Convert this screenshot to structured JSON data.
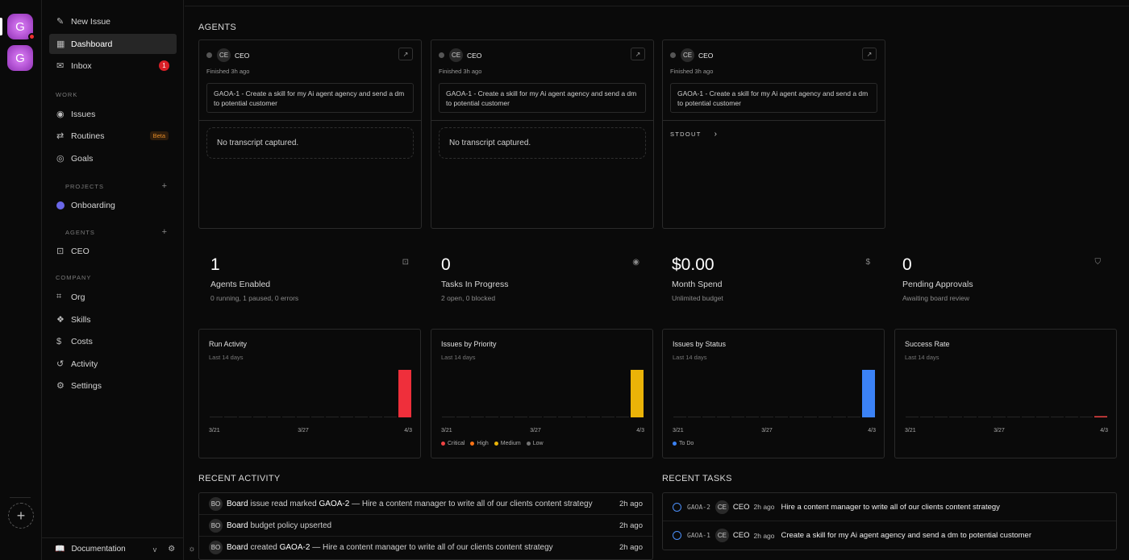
{
  "companies": [
    {
      "initial": "G",
      "has_alert": true
    },
    {
      "initial": "G",
      "has_alert": false
    }
  ],
  "sidebar": {
    "new_issue": "New Issue",
    "dashboard": "Dashboard",
    "inbox": "Inbox",
    "inbox_count": "1",
    "work_label": "WORK",
    "issues": "Issues",
    "routines": "Routines",
    "beta": "Beta",
    "goals": "Goals",
    "projects_label": "PROJECTS",
    "project": "Onboarding",
    "agents_label": "AGENTS",
    "agent": "CEO",
    "company_label": "COMPANY",
    "org": "Org",
    "skills": "Skills",
    "costs": "Costs",
    "activity": "Activity",
    "settings": "Settings",
    "documentation": "Documentation",
    "version": "v"
  },
  "agents_title": "AGENTS",
  "agent_cards": [
    {
      "avatar": "CE",
      "name": "CEO",
      "finished": "Finished 3h ago",
      "task": "GAOA-1 - Create a skill for my Ai agent agency and send a dm to potential customer",
      "body": "No transcript captured."
    },
    {
      "avatar": "CE",
      "name": "CEO",
      "finished": "Finished 3h ago",
      "task": "GAOA-1 - Create a skill for my Ai agent agency and send a dm to potential customer",
      "body": "No transcript captured."
    },
    {
      "avatar": "CE",
      "name": "CEO",
      "finished": "Finished 3h ago",
      "task": "GAOA-1 - Create a skill for my Ai agent agency and send a dm to potential customer",
      "stdout": "STDOUT"
    }
  ],
  "metrics": [
    {
      "value": "1",
      "label": "Agents Enabled",
      "sub": "0 running, 1 paused, 0 errors",
      "icon": "bot-icon"
    },
    {
      "value": "0",
      "label": "Tasks In Progress",
      "sub": "2 open, 0 blocked",
      "icon": "circle-dot-icon"
    },
    {
      "value": "$0.00",
      "label": "Month Spend",
      "sub": "Unlimited budget",
      "icon": "dollar-icon"
    },
    {
      "value": "0",
      "label": "Pending Approvals",
      "sub": "Awaiting board review",
      "icon": "shield-icon"
    }
  ],
  "chart_data": [
    {
      "type": "bar",
      "title": "Run Activity",
      "subtitle": "Last 14 days",
      "x": [
        "3/21",
        "3/22",
        "3/23",
        "3/24",
        "3/25",
        "3/26",
        "3/27",
        "3/28",
        "3/29",
        "3/30",
        "3/31",
        "4/1",
        "4/2",
        "4/3"
      ],
      "x_tick_labels": [
        "3/21",
        "3/27",
        "4/3"
      ],
      "values": [
        0,
        0,
        0,
        0,
        0,
        0,
        0,
        0,
        0,
        0,
        0,
        0,
        0,
        1
      ],
      "color": "#ef2f3b"
    },
    {
      "type": "bar",
      "title": "Issues by Priority",
      "subtitle": "Last 14 days",
      "x": [
        "3/21",
        "3/22",
        "3/23",
        "3/24",
        "3/25",
        "3/26",
        "3/27",
        "3/28",
        "3/29",
        "3/30",
        "3/31",
        "4/1",
        "4/2",
        "4/3"
      ],
      "x_tick_labels": [
        "3/21",
        "3/27",
        "4/3"
      ],
      "values": [
        0,
        0,
        0,
        0,
        0,
        0,
        0,
        0,
        0,
        0,
        0,
        0,
        0,
        2
      ],
      "color": "#eab308",
      "legend": [
        {
          "name": "Critical",
          "color": "#ef4444"
        },
        {
          "name": "High",
          "color": "#f97316"
        },
        {
          "name": "Medium",
          "color": "#eab308"
        },
        {
          "name": "Low",
          "color": "#737373"
        }
      ]
    },
    {
      "type": "bar",
      "title": "Issues by Status",
      "subtitle": "Last 14 days",
      "x": [
        "3/21",
        "3/22",
        "3/23",
        "3/24",
        "3/25",
        "3/26",
        "3/27",
        "3/28",
        "3/29",
        "3/30",
        "3/31",
        "4/1",
        "4/2",
        "4/3"
      ],
      "x_tick_labels": [
        "3/21",
        "3/27",
        "4/3"
      ],
      "values": [
        0,
        0,
        0,
        0,
        0,
        0,
        0,
        0,
        0,
        0,
        0,
        0,
        0,
        2
      ],
      "color": "#3b82f6",
      "legend": [
        {
          "name": "To Do",
          "color": "#3b82f6"
        }
      ]
    },
    {
      "type": "bar",
      "title": "Success Rate",
      "subtitle": "Last 14 days",
      "x": [
        "3/21",
        "3/22",
        "3/23",
        "3/24",
        "3/25",
        "3/26",
        "3/27",
        "3/28",
        "3/29",
        "3/30",
        "3/31",
        "4/1",
        "4/2",
        "4/3"
      ],
      "x_tick_labels": [
        "3/21",
        "3/27",
        "4/3"
      ],
      "values": [
        0,
        0,
        0,
        0,
        0,
        0,
        0,
        0,
        0,
        0,
        0,
        0,
        0,
        0
      ],
      "color": "#ef4444"
    }
  ],
  "recent_activity_title": "RECENT ACTIVITY",
  "recent_activity": [
    {
      "avatar": "BO",
      "actor": "Board",
      "verb": "issue read marked",
      "ref": "GAOA-2",
      "detail": "— Hire a content manager to write all of our clients content strategy",
      "when": "2h ago"
    },
    {
      "avatar": "BO",
      "actor": "Board",
      "verb": "budget policy upserted",
      "ref": "",
      "detail": "",
      "when": "2h ago"
    },
    {
      "avatar": "BO",
      "actor": "Board",
      "verb": "created",
      "ref": "GAOA-2",
      "detail": "— Hire a content manager to write all of our clients content strategy",
      "when": "2h ago"
    }
  ],
  "recent_tasks_title": "RECENT TASKS",
  "recent_tasks": [
    {
      "id": "GAOA-2",
      "avatar": "CE",
      "agent": "CEO",
      "ago": "2h ago",
      "title": "Hire a content manager to write all of our clients content strategy"
    },
    {
      "id": "GAOA-1",
      "avatar": "CE",
      "agent": "CEO",
      "ago": "2h ago",
      "title": "Create a skill for my Ai agent agency and send a dm to potential customer"
    }
  ]
}
